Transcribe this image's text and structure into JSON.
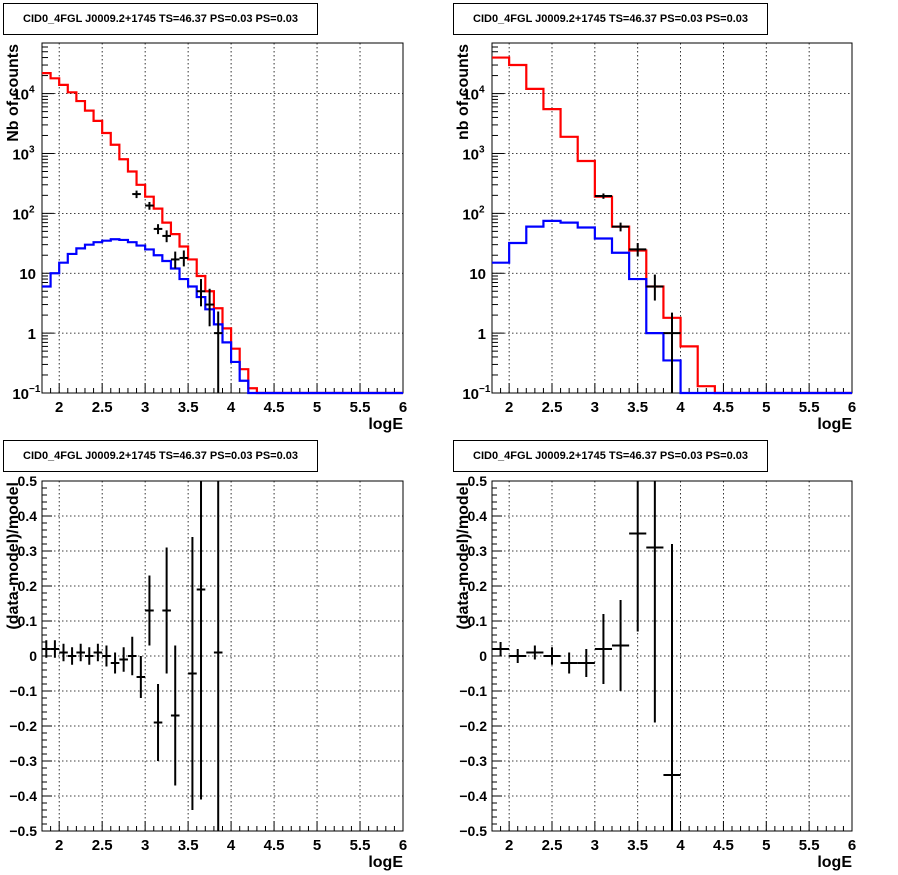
{
  "chart_data": [
    {
      "type": "histogram",
      "title": "CID0_4FGL J0009.2+1745 TS=46.37 PS=0.03 PS=0.03",
      "xlabel": "logE",
      "ylabel": "Nb of counts",
      "xlim": [
        1.8,
        6.0
      ],
      "ylim": [
        0.1,
        70000
      ],
      "yscale": "log",
      "grid": true,
      "x_ticks": [
        "2",
        "2.5",
        "3",
        "3.5",
        "4",
        "4.5",
        "5",
        "5.5",
        "6"
      ],
      "y_ticks": [
        "10^-1",
        "1",
        "10",
        "10^2",
        "10^3",
        "10^4"
      ],
      "bin_edges": [
        1.8,
        1.9,
        2.0,
        2.1,
        2.2,
        2.3,
        2.4,
        2.5,
        2.6,
        2.7,
        2.8,
        2.9,
        3.0,
        3.1,
        3.2,
        3.3,
        3.4,
        3.5,
        3.6,
        3.7,
        3.8,
        3.9,
        4.0,
        4.1,
        4.2,
        4.3,
        4.4,
        4.5,
        4.6,
        4.7,
        4.8,
        4.9,
        5.0,
        5.1,
        5.2,
        5.3,
        5.4,
        5.5,
        5.6,
        5.7,
        5.8,
        5.9,
        6.0
      ],
      "series": [
        {
          "color": "#ff0000",
          "values": [
            22000,
            18000,
            14000,
            10500,
            7500,
            5200,
            3500,
            2200,
            1400,
            800,
            500,
            300,
            190,
            120,
            70,
            45,
            28,
            17,
            9,
            5,
            2.6,
            1.2,
            0.55,
            0.25,
            0.12,
            0.1,
            0.1,
            0.1,
            0.1,
            0.1,
            0.1,
            0.1,
            0.1,
            0.1,
            0.1,
            0.1,
            0.1,
            0.1,
            0.1,
            0.1,
            0.1,
            0.1
          ]
        },
        {
          "color": "#0000ff",
          "values": [
            6,
            10,
            15,
            21,
            26,
            30,
            33,
            35,
            37,
            36,
            33,
            29,
            25,
            20,
            16,
            12,
            8,
            6,
            4,
            2.5,
            1.4,
            0.7,
            0.33,
            0.16,
            0.1,
            0.1,
            0.1,
            0.1,
            0.1,
            0.1,
            0.1,
            0.1,
            0.1,
            0.1,
            0.1,
            0.1,
            0.1,
            0.1,
            0.1,
            0.1,
            0.1,
            0.1
          ]
        },
        {
          "color": "#000000",
          "style": "points",
          "points": [
            {
              "x": 2.9,
              "y": 210,
              "xerr": 0.05,
              "ylo": 180,
              "yhi": 240
            },
            {
              "x": 3.05,
              "y": 135,
              "xerr": 0.05,
              "ylo": 115,
              "yhi": 155
            },
            {
              "x": 3.15,
              "y": 55,
              "xerr": 0.05,
              "ylo": 45,
              "yhi": 66
            },
            {
              "x": 3.25,
              "y": 42,
              "xerr": 0.05,
              "ylo": 33,
              "yhi": 52
            },
            {
              "x": 3.35,
              "y": 17,
              "xerr": 0.05,
              "ylo": 12,
              "yhi": 23
            },
            {
              "x": 3.45,
              "y": 18,
              "xerr": 0.05,
              "ylo": 13,
              "yhi": 24
            },
            {
              "x": 3.65,
              "y": 5,
              "xerr": 0.05,
              "ylo": 2.8,
              "yhi": 8
            },
            {
              "x": 3.75,
              "y": 3,
              "xerr": 0.05,
              "ylo": 1.3,
              "yhi": 5.5
            },
            {
              "x": 3.85,
              "y": 1,
              "xerr": 0.05,
              "ylo": 0.1,
              "yhi": 2.3
            }
          ]
        }
      ]
    },
    {
      "type": "histogram",
      "title": "CID0_4FGL J0009.2+1745 TS=46.37 PS=0.03 PS=0.03",
      "xlabel": "logE",
      "ylabel": "nb of counts",
      "xlim": [
        1.8,
        6.0
      ],
      "ylim": [
        0.1,
        70000
      ],
      "yscale": "log",
      "grid": true,
      "x_ticks": [
        "2",
        "2.5",
        "3",
        "3.5",
        "4",
        "4.5",
        "5",
        "5.5",
        "6"
      ],
      "y_ticks": [
        "10^-1",
        "1",
        "10",
        "10^2",
        "10^3",
        "10^4"
      ],
      "bin_edges": [
        1.8,
        2.0,
        2.2,
        2.4,
        2.6,
        2.8,
        3.0,
        3.2,
        3.4,
        3.6,
        3.8,
        4.0,
        4.2,
        4.4,
        4.6,
        4.8,
        5.0,
        5.2,
        5.4,
        5.6,
        5.8,
        6.0
      ],
      "series": [
        {
          "color": "#ff0000",
          "values": [
            40000,
            30000,
            12000,
            5500,
            1900,
            750,
            190,
            60,
            24,
            6,
            1.8,
            0.6,
            0.13,
            0.1,
            0.1,
            0.1,
            0.1,
            0.1,
            0.1,
            0.1,
            0.1
          ]
        },
        {
          "color": "#0000ff",
          "values": [
            15,
            32,
            60,
            75,
            70,
            58,
            38,
            22,
            8,
            1,
            0.35,
            0.1,
            0.1,
            0.1,
            0.1,
            0.1,
            0.1,
            0.1,
            0.1,
            0.1,
            0.1
          ]
        },
        {
          "color": "#000000",
          "style": "points",
          "points": [
            {
              "x": 3.1,
              "y": 195,
              "xerr": 0.1,
              "ylo": 175,
              "yhi": 215
            },
            {
              "x": 3.3,
              "y": 60,
              "xerr": 0.1,
              "ylo": 50,
              "yhi": 70
            },
            {
              "x": 3.5,
              "y": 25,
              "xerr": 0.1,
              "ylo": 19,
              "yhi": 32
            },
            {
              "x": 3.7,
              "y": 6,
              "xerr": 0.1,
              "ylo": 3.5,
              "yhi": 9.5
            },
            {
              "x": 3.9,
              "y": 1,
              "xerr": 0.1,
              "ylo": 0.1,
              "yhi": 2.2
            }
          ]
        }
      ]
    },
    {
      "type": "scatter",
      "title": "CID0_4FGL J0009.2+1745 TS=46.37 PS=0.03 PS=0.03",
      "xlabel": "logE",
      "ylabel": "(data-model)/model",
      "xlim": [
        1.8,
        6.0
      ],
      "ylim": [
        -0.5,
        0.5
      ],
      "grid": true,
      "x_ticks": [
        "2",
        "2.5",
        "3",
        "3.5",
        "4",
        "4.5",
        "5",
        "5.5",
        "6"
      ],
      "y_ticks": [
        "-0.5",
        "-0.4",
        "-0.3",
        "-0.2",
        "-0.1",
        "0",
        "0.1",
        "0.2",
        "0.3",
        "0.4",
        "0.5"
      ],
      "points": [
        {
          "x": 1.85,
          "y": 0.02,
          "xerr": 0.05,
          "err": 0.025
        },
        {
          "x": 1.95,
          "y": 0.02,
          "xerr": 0.05,
          "err": 0.025
        },
        {
          "x": 2.05,
          "y": 0.01,
          "xerr": 0.05,
          "err": 0.025
        },
        {
          "x": 2.15,
          "y": 0.0,
          "xerr": 0.05,
          "err": 0.025
        },
        {
          "x": 2.25,
          "y": 0.01,
          "xerr": 0.05,
          "err": 0.025
        },
        {
          "x": 2.35,
          "y": 0.0,
          "xerr": 0.05,
          "err": 0.025
        },
        {
          "x": 2.45,
          "y": 0.01,
          "xerr": 0.05,
          "err": 0.025
        },
        {
          "x": 2.55,
          "y": 0.0,
          "xerr": 0.05,
          "err": 0.03
        },
        {
          "x": 2.65,
          "y": -0.02,
          "xerr": 0.05,
          "err": 0.03
        },
        {
          "x": 2.75,
          "y": -0.01,
          "xerr": 0.05,
          "err": 0.035
        },
        {
          "x": 2.85,
          "y": 0.0,
          "xerr": 0.05,
          "err": 0.055
        },
        {
          "x": 2.95,
          "y": -0.06,
          "xerr": 0.05,
          "err": 0.06
        },
        {
          "x": 3.05,
          "y": 0.13,
          "xerr": 0.05,
          "err": 0.1
        },
        {
          "x": 3.15,
          "y": -0.19,
          "xerr": 0.05,
          "err": 0.11
        },
        {
          "x": 3.25,
          "y": 0.13,
          "xerr": 0.05,
          "err": 0.18
        },
        {
          "x": 3.35,
          "y": -0.17,
          "xerr": 0.05,
          "err": 0.2
        },
        {
          "x": 3.55,
          "y": -0.05,
          "xerr": 0.05,
          "err": 0.39
        },
        {
          "x": 3.65,
          "y": 0.19,
          "xerr": 0.05,
          "err": 0.6
        },
        {
          "x": 3.85,
          "y": 0.01,
          "xerr": 0.05,
          "err": 1.0
        }
      ]
    },
    {
      "type": "scatter",
      "title": "CID0_4FGL J0009.2+1745 TS=46.37 PS=0.03 PS=0.03",
      "xlabel": "logE",
      "ylabel": "(data-model)/model",
      "xlim": [
        1.8,
        6.0
      ],
      "ylim": [
        -0.5,
        0.5
      ],
      "grid": true,
      "x_ticks": [
        "2",
        "2.5",
        "3",
        "3.5",
        "4",
        "4.5",
        "5",
        "5.5",
        "6"
      ],
      "y_ticks": [
        "-0.5",
        "-0.4",
        "-0.3",
        "-0.2",
        "-0.1",
        "0",
        "0.1",
        "0.2",
        "0.3",
        "0.4",
        "0.5"
      ],
      "points": [
        {
          "x": 1.9,
          "y": 0.02,
          "xerr": 0.1,
          "err": 0.02
        },
        {
          "x": 2.1,
          "y": 0.0,
          "xerr": 0.1,
          "err": 0.02
        },
        {
          "x": 2.3,
          "y": 0.01,
          "xerr": 0.1,
          "err": 0.02
        },
        {
          "x": 2.5,
          "y": 0.0,
          "xerr": 0.1,
          "err": 0.025
        },
        {
          "x": 2.7,
          "y": -0.02,
          "xerr": 0.1,
          "err": 0.03
        },
        {
          "x": 2.9,
          "y": -0.02,
          "xerr": 0.1,
          "err": 0.04
        },
        {
          "x": 3.1,
          "y": 0.02,
          "xerr": 0.1,
          "err": 0.1
        },
        {
          "x": 3.3,
          "y": 0.03,
          "xerr": 0.1,
          "err": 0.13
        },
        {
          "x": 3.5,
          "y": 0.35,
          "xerr": 0.1,
          "err": 0.28
        },
        {
          "x": 3.7,
          "y": 0.31,
          "xerr": 0.1,
          "err": 0.5
        },
        {
          "x": 3.9,
          "y": -0.34,
          "xerr": 0.1,
          "err": 0.66
        }
      ]
    }
  ]
}
